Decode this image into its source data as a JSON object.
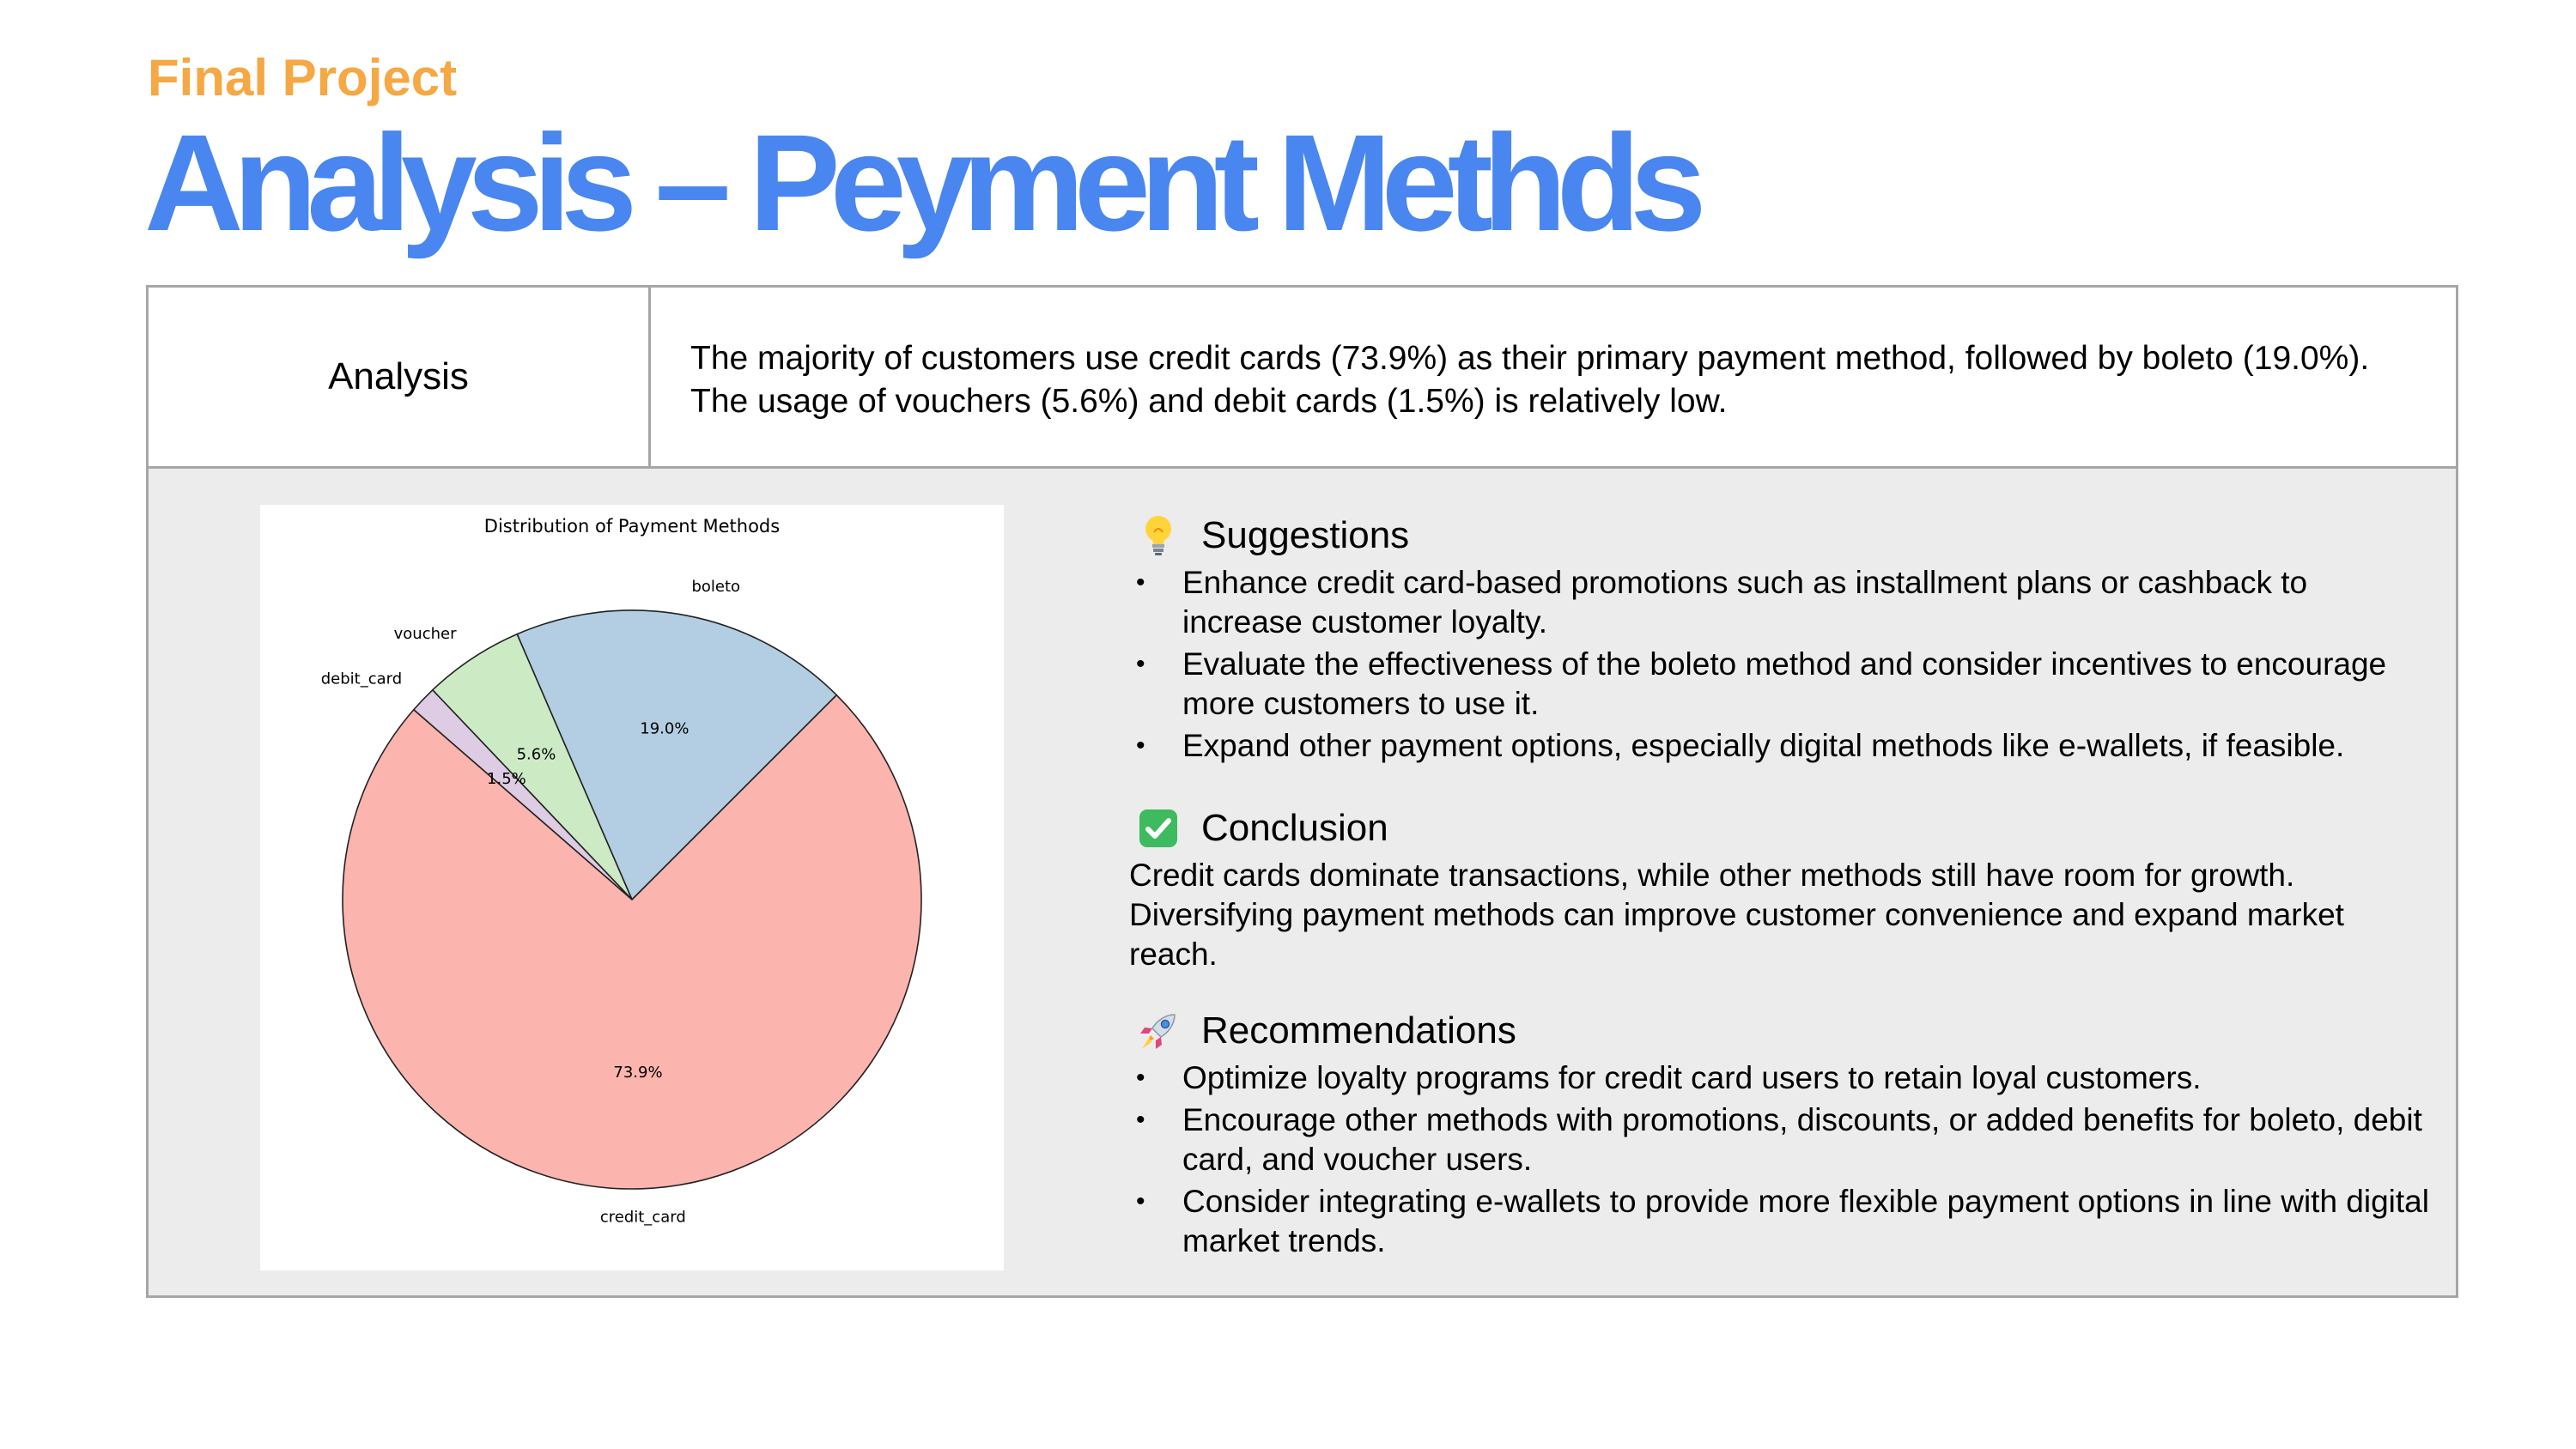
{
  "header": {
    "subtitle": "Final Project",
    "title": "Analysis – Peyment Methds"
  },
  "analysis_row": {
    "label": "Analysis",
    "text": "The majority of customers use credit cards (73.9%) as their primary payment method, followed by boleto (19.0%). The usage of vouchers (5.6%) and debit cards (1.5%) is relatively low."
  },
  "chart_data": {
    "type": "pie",
    "title": "Distribution of Payment Methods",
    "slices": [
      {
        "label": "credit_card",
        "value": 73.9,
        "color": "#fbb4ae"
      },
      {
        "label": "boleto",
        "value": 19.0,
        "color": "#b3cde3"
      },
      {
        "label": "voucher",
        "value": 5.6,
        "color": "#ccebc5"
      },
      {
        "label": "debit_card",
        "value": 1.5,
        "color": "#decbe4"
      }
    ],
    "value_format": "%.1f%%",
    "edge_color": "#222222"
  },
  "suggestions": {
    "heading": "Suggestions",
    "icon": "lightbulb-icon",
    "items": [
      "Enhance credit card-based promotions such as installment plans or cashback to increase customer loyalty.",
      "Evaluate the effectiveness of the boleto method and consider incentives to encourage more customers to use it.",
      "Expand other payment options, especially digital methods like e-wallets, if feasible."
    ]
  },
  "conclusion": {
    "heading": "Conclusion",
    "icon": "check-mark-icon",
    "text": "Credit cards dominate transactions, while other methods still have room for growth. Diversifying payment methods can improve customer convenience and expand market reach."
  },
  "recommendations": {
    "heading": "Recommendations",
    "icon": "rocket-icon",
    "items": [
      "Optimize loyalty programs for credit card users to retain loyal customers.",
      "Encourage other methods with promotions, discounts, or added benefits for boleto, debit card, and voucher users.",
      "Consider integrating e-wallets to provide more flexible payment options in line with digital market trends."
    ]
  },
  "colors": {
    "subtitle": "#f5a843",
    "title": "#4a86f0",
    "panel_bg": "#ececec",
    "border": "#a6a6a6"
  }
}
